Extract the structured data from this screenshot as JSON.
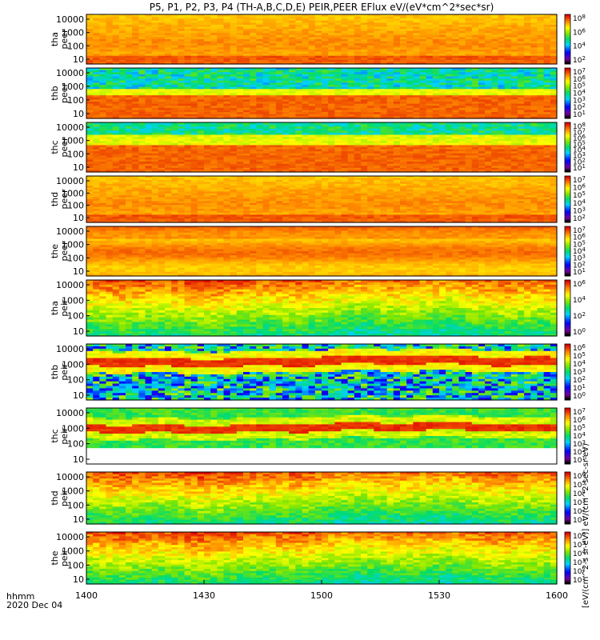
{
  "title": "P5, P1, P2, P3, P4 (TH-A,B,C,D,E) PEIR,PEER EFlux eV/(eV*cm^2*sec*sr)",
  "time_axis": {
    "unit_label": "hhmm",
    "date": "2020 Dec 04",
    "ticks": [
      "1400",
      "1430",
      "1500",
      "1530",
      "1600"
    ]
  },
  "colorbar_label": "[eV/(cm^2-s sr-eV)] eV/(cm^2-sec-sr-eV)",
  "chart_data": {
    "type": "heatmap",
    "x": {
      "label": "hhmm",
      "range": [
        "1400",
        "1600"
      ],
      "ticks": [
        "1400",
        "1430",
        "1500",
        "1530",
        "1600"
      ]
    },
    "ylabel_units": "eV",
    "y_ticks": [
      "10000",
      "1000",
      "100",
      "10"
    ],
    "y_ticks_top_panel": [
      "10000",
      "1000",
      "100",
      "10"
    ],
    "panels": [
      {
        "probe": "tha",
        "species": "peer",
        "label": "tha peer",
        "cbar_ticks": [
          "10^8",
          "10^6",
          "10^4",
          "10^2"
        ],
        "profile": "peer_hot"
      },
      {
        "probe": "thb",
        "species": "peer",
        "label": "thb peer",
        "cbar_ticks": [
          "10^7",
          "10^6",
          "10^5",
          "10^4",
          "10^3",
          "10^2",
          "10^1"
        ],
        "profile": "peer_thb"
      },
      {
        "probe": "thc",
        "species": "peer",
        "label": "thc peer",
        "cbar_ticks": [
          "10^8",
          "10^7",
          "10^6",
          "10^5",
          "10^4",
          "10^3",
          "10^2",
          "10^1"
        ],
        "profile": "peer_thc"
      },
      {
        "probe": "thd",
        "species": "peer",
        "label": "thd peer",
        "cbar_ticks": [
          "10^7",
          "10^6",
          "10^5",
          "10^4",
          "10^3",
          "10^2"
        ],
        "profile": "peer_hot"
      },
      {
        "probe": "the",
        "species": "peer",
        "label": "the peer",
        "cbar_ticks": [
          "10^7",
          "10^6",
          "10^5",
          "10^4",
          "10^3",
          "10^2",
          "10^1"
        ],
        "profile": "peer_the"
      },
      {
        "probe": "tha",
        "species": "peir",
        "label": "tha peir",
        "cbar_ticks": [
          "10^6",
          "10^4",
          "10^2",
          "10^0"
        ],
        "profile": "peir_broad"
      },
      {
        "probe": "thb",
        "species": "peir",
        "label": "thb peir",
        "cbar_ticks": [
          "10^6",
          "10^5",
          "10^4",
          "10^3",
          "10^2",
          "10^1",
          "10^0"
        ],
        "profile": "peir_band"
      },
      {
        "probe": "thc",
        "species": "peir",
        "label": "thc peir",
        "cbar_ticks": [
          "10^7",
          "10^6",
          "10^5",
          "10^4",
          "10^3",
          "10^2",
          "10^1"
        ],
        "profile": "peir_band_c"
      },
      {
        "probe": "thd",
        "species": "peir",
        "label": "thd peir",
        "cbar_ticks": [
          "10^6",
          "10^5",
          "10^4",
          "10^3",
          "10^2",
          "10^1"
        ],
        "profile": "peir_broad"
      },
      {
        "probe": "the",
        "species": "peir",
        "label": "the peir",
        "cbar_ticks": [
          "10^6",
          "10^5",
          "10^4",
          "10^3",
          "10^2",
          "10^1"
        ],
        "profile": "peir_broad"
      }
    ]
  }
}
